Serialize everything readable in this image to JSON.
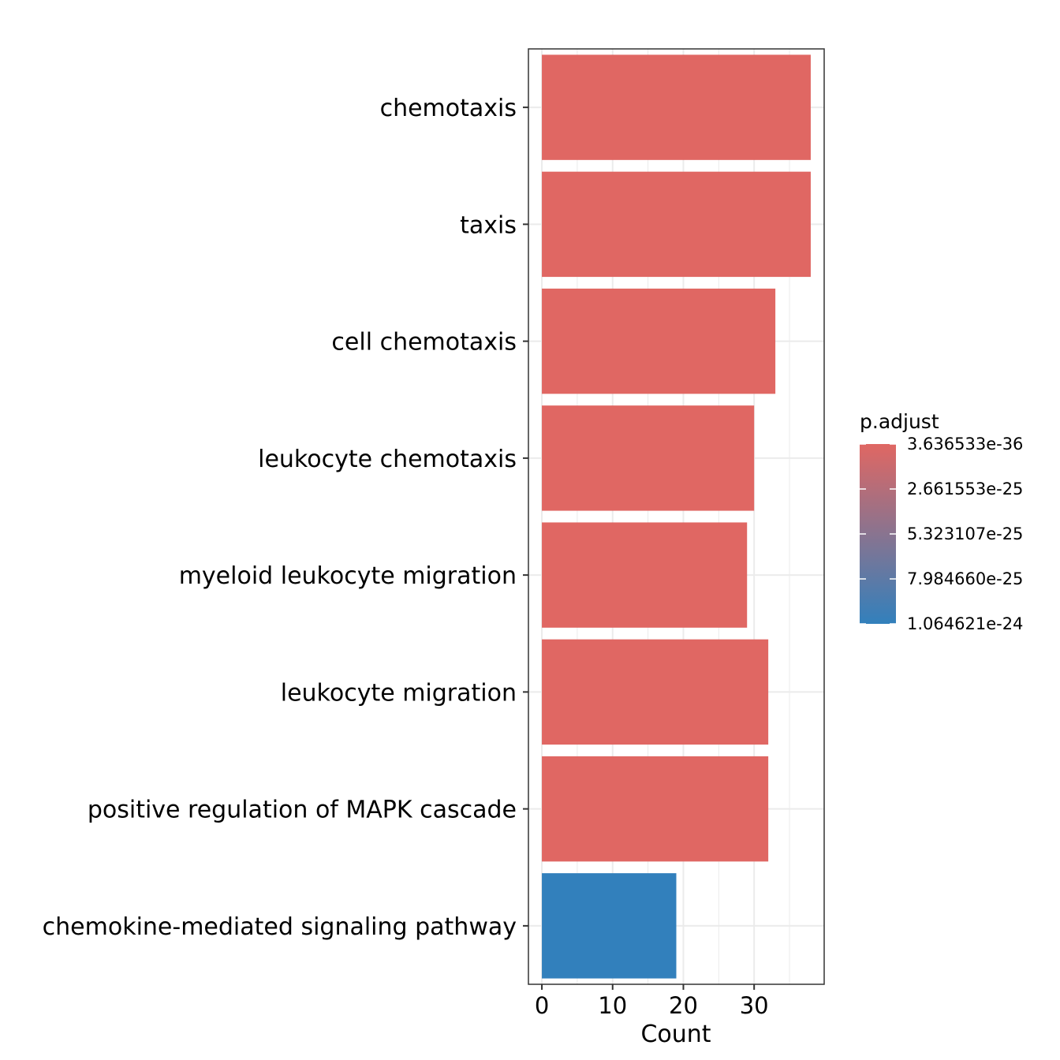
{
  "chart_data": {
    "type": "bar",
    "orientation": "horizontal",
    "categories": [
      "chemotaxis",
      "taxis",
      "cell chemotaxis",
      "leukocyte chemotaxis",
      "myeloid leukocyte migration",
      "leukocyte migration",
      "positive regulation of MAPK cascade",
      "chemokine-mediated signaling pathway"
    ],
    "values": [
      38,
      38,
      33,
      30,
      29,
      32,
      32,
      19
    ],
    "p_adjust": [
      3.636533e-36,
      3.636533e-36,
      1e-33,
      1e-32,
      1e-31,
      1e-30,
      1e-29,
      1.064621e-24
    ],
    "bar_colors": [
      "#E06763",
      "#E06763",
      "#E06763",
      "#E06763",
      "#E06763",
      "#E06763",
      "#E06763",
      "#3280BC"
    ],
    "xlabel": "Count",
    "ylabel": "",
    "xlim": [
      -1.9,
      39.9
    ],
    "x_ticks": [
      0,
      10,
      20,
      30
    ],
    "x_tick_labels": [
      "0",
      "10",
      "20",
      "30"
    ],
    "grid": true,
    "legend": {
      "title": "p.adjust",
      "position": "right",
      "color_high_significance": "#E06763",
      "color_low_significance": "#3280BC",
      "labels": [
        "3.636533e-36",
        "2.661553e-25",
        "5.323107e-25",
        "7.984660e-25",
        "1.064621e-24"
      ],
      "label_values": [
        3.636533e-36,
        2.661553e-25,
        5.323107e-25,
        7.98466e-25,
        1.064621e-24
      ]
    }
  }
}
